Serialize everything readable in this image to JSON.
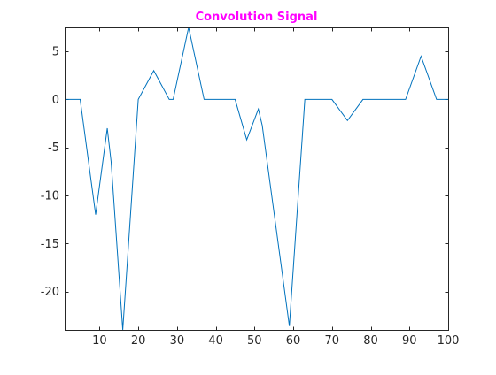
{
  "chart_data": {
    "type": "line",
    "title": "Convolution Signal",
    "title_color": "#ff00ff",
    "xlabel": "",
    "ylabel": "",
    "xlim": [
      1,
      100
    ],
    "ylim": [
      -24,
      7.5
    ],
    "xticks": [
      10,
      20,
      30,
      40,
      50,
      60,
      70,
      80,
      90,
      100
    ],
    "yticks": [
      5,
      0,
      -5,
      -10,
      -15,
      -20
    ],
    "grid": false,
    "line_color": "#0072bd",
    "axis_color": "#262626",
    "series": [
      {
        "x": [
          1,
          5,
          9,
          12,
          13,
          16,
          20,
          24,
          28,
          29,
          33,
          37,
          41,
          45,
          48,
          51,
          52,
          59,
          63,
          66,
          70,
          74,
          78,
          81,
          85,
          89,
          93,
          97,
          100
        ],
        "y": [
          0,
          0,
          -12,
          -3,
          -6.5,
          -24,
          0,
          3,
          0,
          0,
          7.5,
          0,
          0,
          0,
          -4.2,
          -1,
          -2.7,
          -23.6,
          0,
          0,
          0,
          -2.2,
          0,
          0,
          0,
          0,
          4.5,
          0,
          0
        ]
      }
    ]
  }
}
